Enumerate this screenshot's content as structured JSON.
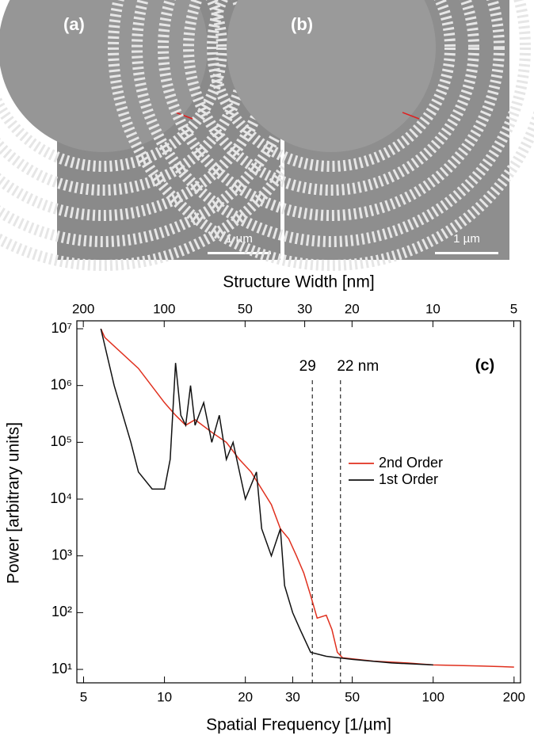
{
  "panels": [
    {
      "label": "(a)",
      "scale_bar": "1 µm"
    },
    {
      "label": "(b)",
      "scale_bar": "1 µm"
    }
  ],
  "chart_data": {
    "type": "line",
    "panel_label": "(c)",
    "x_label": "Spatial Frequency [1/µm]",
    "y_label": "Power [arbitrary units]",
    "x2_label": "Structure Width [nm]",
    "xscale": "log",
    "yscale": "log",
    "xlim": [
      4.72,
      211.4
    ],
    "ylim": [
      5.8,
      13800000
    ],
    "xticks": [
      5,
      10,
      20,
      30,
      50,
      100,
      200
    ],
    "x2lim": [
      211.4,
      4.72
    ],
    "x2ticks": [
      200,
      100,
      50,
      30,
      20,
      10,
      5
    ],
    "yticks": [
      {
        "value": 10,
        "label": "10¹"
      },
      {
        "value": 100,
        "label": "10²"
      },
      {
        "value": 1000,
        "label": "10³"
      },
      {
        "value": 10000,
        "label": "10⁴"
      },
      {
        "value": 100000,
        "label": "10⁵"
      },
      {
        "value": 1000000,
        "label": "10⁶"
      },
      {
        "value": 10000000,
        "label": "10⁷"
      }
    ],
    "legend": "right",
    "annotations": [
      {
        "text": "29",
        "x": 35.5
      },
      {
        "text": "22 nm",
        "x": 45.2
      }
    ],
    "series": [
      {
        "name": "2nd Order",
        "color": "#e0301e",
        "x": [
          5.8,
          6,
          8,
          10,
          11,
          12,
          13,
          15,
          17,
          19,
          21,
          23,
          25,
          27,
          29,
          31,
          33,
          35,
          37,
          40,
          42,
          44,
          46,
          60,
          80,
          100,
          150,
          200
        ],
        "values": [
          10000000,
          7000000,
          2000000,
          500000,
          300000,
          200000,
          250000,
          150000,
          100000,
          50000,
          30000,
          15000,
          8000,
          3000,
          2000,
          1000,
          500,
          200,
          80,
          90,
          50,
          20,
          16,
          14,
          13,
          12,
          11.5,
          11
        ]
      },
      {
        "name": "1st Order",
        "color": "#111111",
        "x": [
          5.8,
          6.5,
          7.5,
          8,
          9,
          10,
          10.5,
          11,
          11.5,
          12,
          12.5,
          13,
          14,
          15,
          16,
          17,
          18,
          20,
          22,
          23,
          25,
          27,
          28,
          30,
          32,
          35,
          40,
          50,
          70,
          100
        ],
        "values": [
          10000000,
          1000000,
          100000,
          30000,
          15000,
          15000,
          50000,
          2500000,
          300000,
          200000,
          1000000,
          200000,
          500000,
          100000,
          300000,
          50000,
          100000,
          10000,
          30000,
          3000,
          1000,
          3000,
          300,
          100,
          50,
          20,
          17,
          15,
          13,
          12
        ]
      }
    ]
  }
}
